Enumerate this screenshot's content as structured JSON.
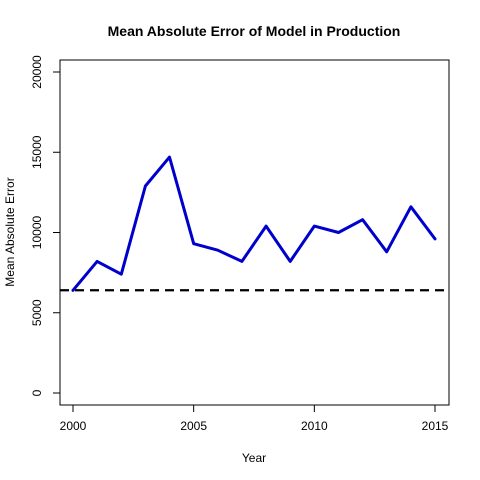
{
  "chart_data": {
    "type": "line",
    "title": "Mean Absolute Error of Model in Production",
    "xlabel": "Year",
    "ylabel": "Mean Absolute Error",
    "xlim": [
      2000,
      2015
    ],
    "ylim": [
      0,
      20000
    ],
    "x_ticks": [
      "2000",
      "2005",
      "2010",
      "2015"
    ],
    "y_ticks": [
      "0",
      "5000",
      "10000",
      "15000",
      "20000"
    ],
    "grid": false,
    "legend": "none",
    "series": [
      {
        "x": [
          2000,
          2001,
          2002,
          2003,
          2004,
          2005,
          2006,
          2007,
          2008,
          2009,
          2010,
          2011,
          2012,
          2013,
          2014,
          2015
        ],
        "y": [
          6400,
          8200,
          7400,
          12900,
          14700,
          9300,
          8900,
          8200,
          10400,
          8200,
          10400,
          10000,
          10800,
          8800,
          11600,
          9600
        ],
        "color": "#0000CD",
        "line_style": "solid"
      }
    ],
    "reference_lines": [
      {
        "orientation": "horizontal",
        "y": 6400,
        "color": "#000000",
        "line_style": "dashed"
      }
    ]
  }
}
